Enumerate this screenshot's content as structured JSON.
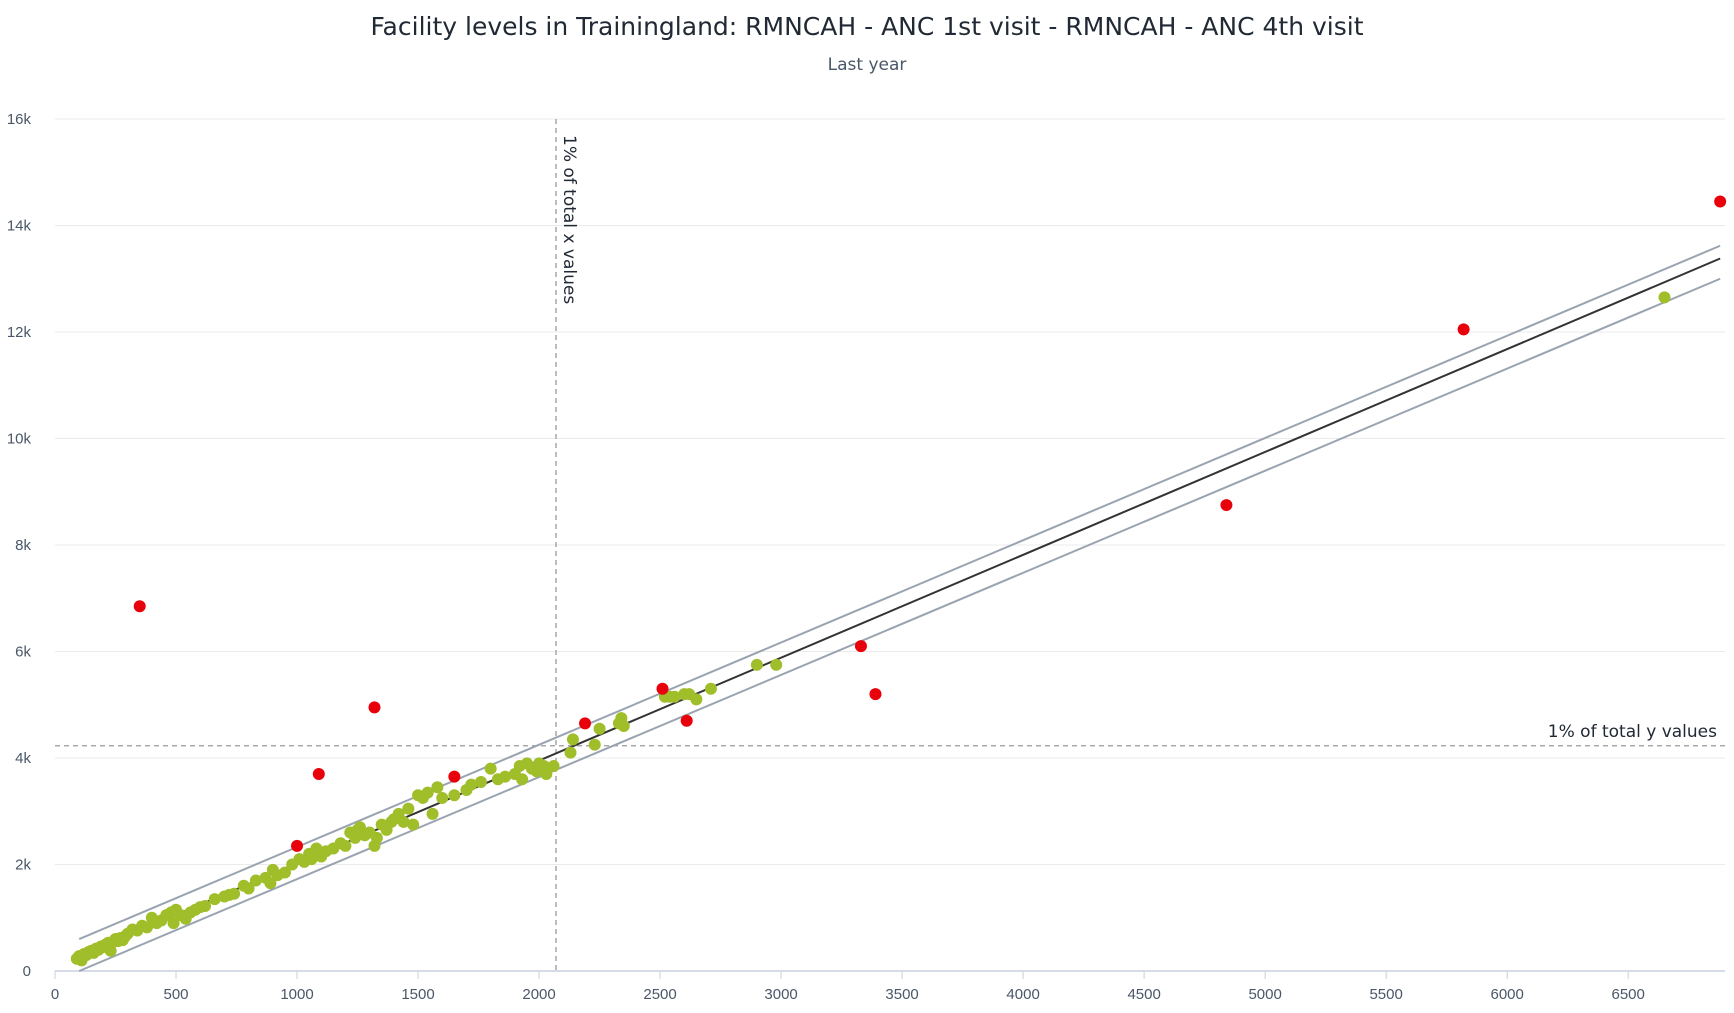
{
  "chart_data": {
    "type": "scatter",
    "title": "Facility levels in Trainingland: RMNCAH - ANC 1st visit - RMNCAH - ANC 4th visit",
    "subtitle": "Last year",
    "xlabel": "",
    "ylabel": "",
    "xlim": [
      0,
      6900
    ],
    "ylim": [
      0,
      16000
    ],
    "x_ticks": [
      0,
      500,
      1000,
      1500,
      2000,
      2500,
      3000,
      3500,
      4000,
      4500,
      5000,
      5500,
      6000,
      6500
    ],
    "x_tick_labels": [
      "0",
      "500",
      "1000",
      "1500",
      "2000",
      "2500",
      "3000",
      "3500",
      "4000",
      "4500",
      "5000",
      "5500",
      "6000",
      "6500"
    ],
    "y_ticks": [
      0,
      2000,
      4000,
      6000,
      8000,
      10000,
      12000,
      14000,
      16000
    ],
    "y_tick_labels": [
      "0",
      "2k",
      "4k",
      "6k",
      "8k",
      "10k",
      "12k",
      "14k",
      "16k"
    ],
    "grid": "horizontal",
    "legend": "none",
    "colors": {
      "normal": "#a0bd2a",
      "outlier": "#e8000b",
      "regression": "#333333",
      "threshold_band": "#9aa3b0",
      "reference_line": "#999999"
    },
    "regression_line": {
      "x": [
        100,
        6880
      ],
      "y": [
        280,
        13380
      ]
    },
    "upper_threshold": {
      "x": [
        100,
        6880
      ],
      "y": [
        600,
        13620
      ]
    },
    "lower_threshold": {
      "x": [
        100,
        6880
      ],
      "y": [
        0,
        13000
      ]
    },
    "reference_lines": [
      {
        "axis": "x",
        "value": 2070,
        "label": "1% of total x values"
      },
      {
        "axis": "y",
        "value": 4230,
        "label": "1% of total y values"
      }
    ],
    "series": [
      {
        "role": "normal",
        "x": [
          90,
          100,
          110,
          120,
          130,
          140,
          150,
          160,
          170,
          180,
          190,
          200,
          210,
          220,
          230,
          240,
          250,
          260,
          270,
          280,
          290,
          300,
          320,
          340,
          360,
          380,
          400,
          420,
          440,
          460,
          480,
          490,
          500,
          520,
          540,
          560,
          580,
          600,
          620,
          660,
          700,
          720,
          740,
          780,
          800,
          830,
          870,
          890,
          900,
          920,
          950,
          980,
          1010,
          1030,
          1050,
          1060,
          1080,
          1100,
          1120,
          1150,
          1180,
          1200,
          1220,
          1240,
          1250,
          1260,
          1280,
          1300,
          1320,
          1330,
          1350,
          1370,
          1390,
          1400,
          1420,
          1440,
          1460,
          1480,
          1500,
          1520,
          1540,
          1560,
          1580,
          1600,
          1650,
          1700,
          1720,
          1760,
          1800,
          1830,
          1860,
          1900,
          1920,
          1930,
          1950,
          1970,
          1990,
          2000,
          2010,
          2020,
          2030,
          2060,
          2130,
          2140,
          2230,
          2250,
          2330,
          2340,
          2350,
          2520,
          2540,
          2560,
          2600,
          2620,
          2650,
          2710,
          2900,
          2980,
          6650
        ],
        "y": [
          230,
          280,
          200,
          320,
          300,
          360,
          380,
          340,
          420,
          400,
          460,
          450,
          500,
          530,
          380,
          550,
          600,
          560,
          620,
          580,
          650,
          700,
          780,
          760,
          850,
          820,
          1000,
          900,
          950,
          1050,
          1100,
          900,
          1150,
          1050,
          980,
          1100,
          1150,
          1200,
          1220,
          1350,
          1400,
          1430,
          1450,
          1600,
          1550,
          1700,
          1750,
          1650,
          1900,
          1800,
          1850,
          2000,
          2100,
          2050,
          2200,
          2100,
          2300,
          2150,
          2250,
          2300,
          2400,
          2350,
          2600,
          2500,
          2650,
          2700,
          2550,
          2600,
          2350,
          2500,
          2750,
          2650,
          2800,
          2850,
          2950,
          2800,
          3050,
          2750,
          3300,
          3250,
          3350,
          2950,
          3450,
          3250,
          3300,
          3400,
          3500,
          3550,
          3800,
          3600,
          3650,
          3700,
          3850,
          3600,
          3900,
          3800,
          3750,
          3900,
          3800,
          3850,
          3700,
          3850,
          4100,
          4350,
          4250,
          4550,
          4650,
          4750,
          4600,
          5150,
          5150,
          5150,
          5200,
          5200,
          5100,
          5300,
          5750,
          5750,
          12650
        ]
      },
      {
        "role": "outlier",
        "x": [
          350,
          1000,
          1090,
          1320,
          1650,
          2190,
          2510,
          2610,
          3330,
          3390,
          4840,
          5820,
          6880
        ],
        "y": [
          6850,
          2350,
          3700,
          4950,
          3650,
          4650,
          5300,
          4700,
          6100,
          5200,
          8750,
          12050,
          14450
        ]
      }
    ]
  }
}
